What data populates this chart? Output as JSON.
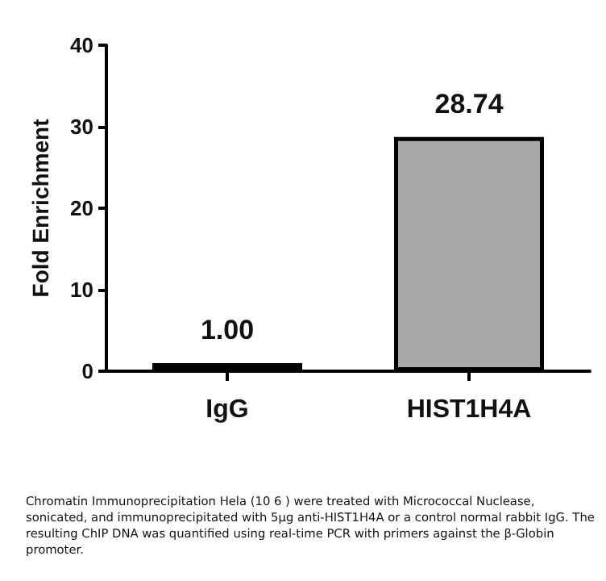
{
  "chart_data": {
    "type": "bar",
    "ylabel": "Fold Enrichment",
    "categories": [
      "IgG",
      "HIST1H4A"
    ],
    "values": [
      1.0,
      28.74
    ],
    "colors": [
      "#e2e2e2",
      "#a8a8a8"
    ],
    "value_labels": [
      "1.00",
      "28.74"
    ],
    "ylim": [
      0,
      40
    ],
    "yticks": [
      0,
      10,
      20,
      30,
      40
    ],
    "grid": false,
    "annotations": [
      "Chromatin Immunoprecipitation Hela (10 6 ) were treated with Micrococcal Nuclease, sonicated, and immunoprecipitated with 5μg anti-HIST1H4A or a control normal rabbit IgG. The resulting ChIP DNA was quantified using real-time PCR with primers against the β-Globin promoter."
    ]
  }
}
